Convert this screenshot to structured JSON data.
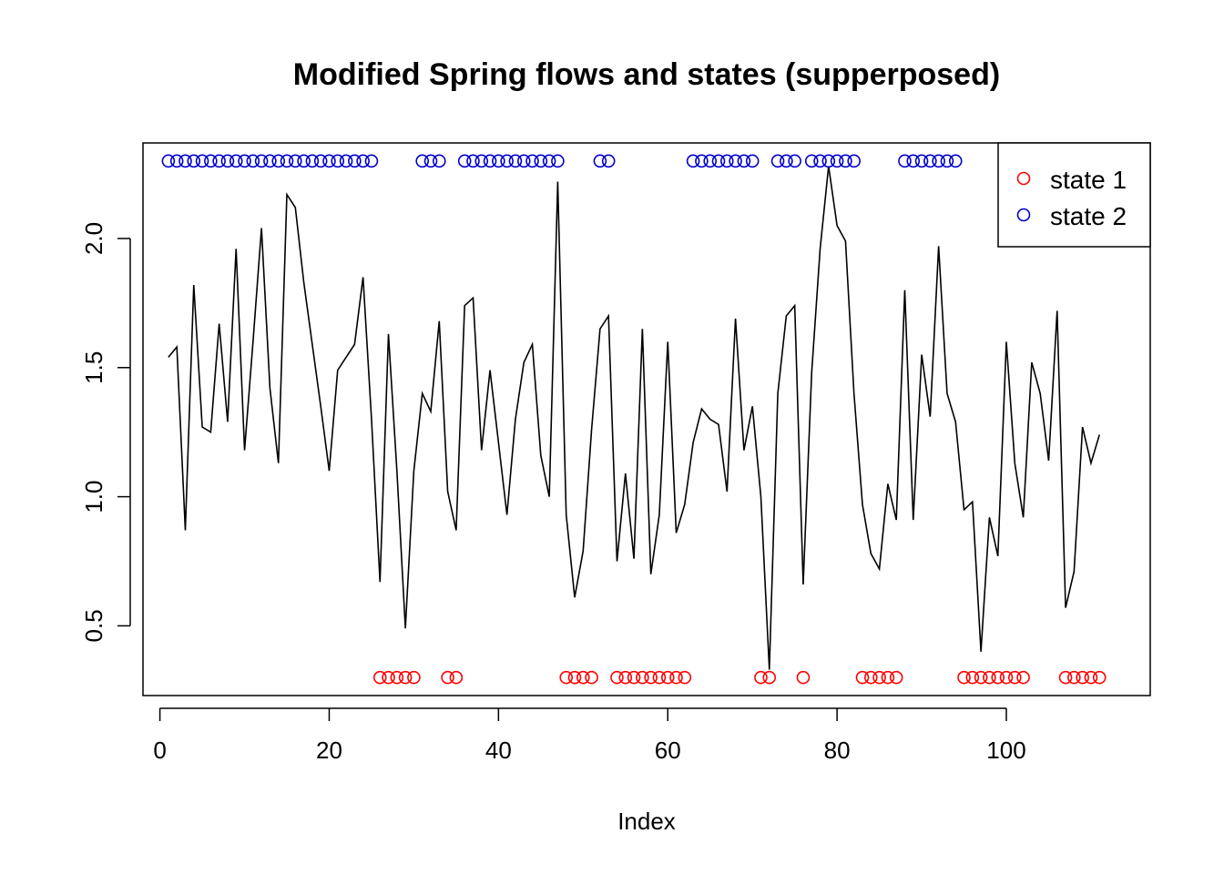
{
  "chart_data": {
    "type": "line",
    "title": "Modified Spring flows and states (supperposed)",
    "xlabel": "Index",
    "ylabel": "",
    "xlim": [
      -2,
      117
    ],
    "ylim": [
      0.23,
      2.37
    ],
    "x_ticks": [
      0,
      20,
      40,
      60,
      80,
      100
    ],
    "y_ticks": [
      0.5,
      1.0,
      1.5,
      2.0
    ],
    "x_tick_labels": [
      "0",
      "20",
      "40",
      "60",
      "80",
      "100"
    ],
    "y_tick_labels": [
      "0.5",
      "1.0",
      "1.5",
      "2.0"
    ],
    "grid": false,
    "legend_position": "top-right",
    "flow": {
      "color": "#000000",
      "values": [
        1.54,
        1.58,
        0.87,
        1.82,
        1.27,
        1.25,
        1.67,
        1.29,
        1.96,
        1.18,
        1.6,
        2.04,
        1.42,
        1.13,
        2.17,
        2.12,
        1.83,
        1.59,
        1.35,
        1.1,
        1.49,
        1.54,
        1.59,
        1.85,
        1.3,
        0.67,
        1.63,
        1.1,
        0.49,
        1.1,
        1.4,
        1.33,
        1.68,
        1.02,
        0.87,
        1.74,
        1.77,
        1.18,
        1.49,
        1.21,
        0.93,
        1.3,
        1.52,
        1.59,
        1.16,
        1.0,
        2.22,
        0.93,
        0.61,
        0.79,
        1.26,
        1.65,
        1.7,
        0.75,
        1.09,
        0.76,
        1.65,
        0.7,
        0.93,
        1.6,
        0.86,
        0.97,
        1.21,
        1.34,
        1.3,
        1.28,
        1.02,
        1.69,
        1.18,
        1.35,
        1.0,
        0.33,
        1.4,
        1.7,
        1.74,
        0.66,
        1.48,
        1.96,
        2.28,
        2.05,
        1.99,
        1.4,
        0.97,
        0.78,
        0.72,
        1.05,
        0.91,
        1.8,
        0.91,
        1.55,
        1.31,
        1.97,
        1.4,
        1.29,
        0.95,
        0.98,
        0.4,
        0.92,
        0.77,
        1.6,
        1.13,
        0.92,
        1.52,
        1.4,
        1.14,
        1.72,
        0.57,
        0.71,
        1.27,
        1.13,
        1.24
      ]
    },
    "series": [
      {
        "name": "state 1",
        "color": "#ff0000",
        "y": 0.3,
        "x": [
          26,
          27,
          28,
          29,
          30,
          34,
          35,
          48,
          49,
          50,
          51,
          54,
          55,
          56,
          57,
          58,
          59,
          60,
          61,
          62,
          71,
          72,
          76,
          83,
          84,
          85,
          86,
          87,
          95,
          96,
          97,
          98,
          99,
          100,
          101,
          102,
          107,
          108,
          109,
          110,
          111
        ]
      },
      {
        "name": "state 2",
        "color": "#0000cc",
        "y": 2.3,
        "x": [
          1,
          2,
          3,
          4,
          5,
          6,
          7,
          8,
          9,
          10,
          11,
          12,
          13,
          14,
          15,
          16,
          17,
          18,
          19,
          20,
          21,
          22,
          23,
          24,
          25,
          31,
          32,
          33,
          36,
          37,
          38,
          39,
          40,
          41,
          42,
          43,
          44,
          45,
          46,
          47,
          52,
          53,
          63,
          64,
          65,
          66,
          67,
          68,
          69,
          70,
          73,
          74,
          75,
          77,
          78,
          79,
          80,
          81,
          82,
          88,
          89,
          90,
          91,
          92,
          93,
          94
        ]
      }
    ]
  }
}
